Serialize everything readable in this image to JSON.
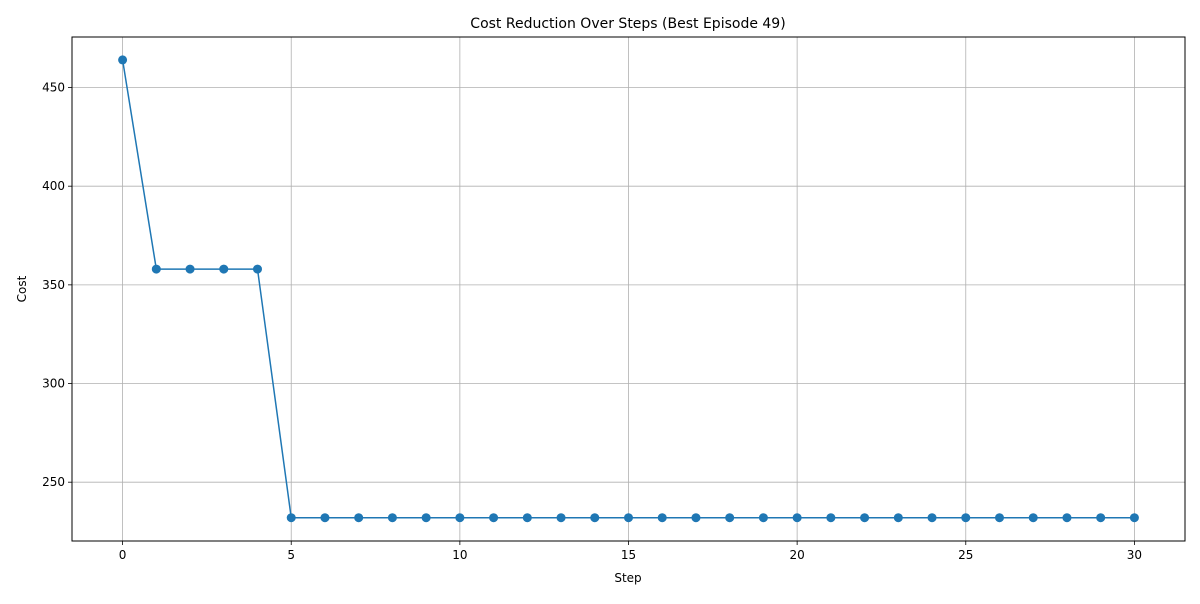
{
  "chart_data": {
    "type": "line",
    "title": "Cost Reduction Over Steps (Best Episode 49)",
    "xlabel": "Step",
    "ylabel": "Cost",
    "xlim": [
      -1.5,
      31.5
    ],
    "ylim": [
      220.2,
      475.6
    ],
    "xticks": [
      0,
      5,
      10,
      15,
      20,
      25,
      30
    ],
    "yticks": [
      250,
      300,
      350,
      400,
      450
    ],
    "grid": true,
    "marker": "circle",
    "color": "#1f77b4",
    "series": [
      {
        "x": [
          0,
          1,
          2,
          3,
          4,
          5,
          6,
          7,
          8,
          9,
          10,
          11,
          12,
          13,
          14,
          15,
          16,
          17,
          18,
          19,
          20,
          21,
          22,
          23,
          24,
          25,
          26,
          27,
          28,
          29,
          30
        ],
        "values": [
          464,
          358,
          358,
          358,
          358,
          232,
          232,
          232,
          232,
          232,
          232,
          232,
          232,
          232,
          232,
          232,
          232,
          232,
          232,
          232,
          232,
          232,
          232,
          232,
          232,
          232,
          232,
          232,
          232,
          232,
          232
        ]
      }
    ]
  }
}
